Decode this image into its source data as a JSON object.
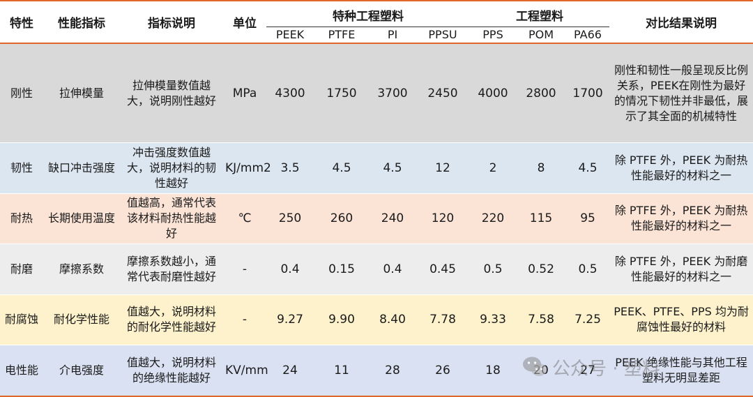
{
  "table": {
    "headers": {
      "feature": "特性",
      "indicator": "性能指标",
      "description": "指标说明",
      "unit": "单位",
      "special_group": "特种工程塑料",
      "engineering_group": "工程塑料",
      "result": "对比结果说明",
      "materials": [
        "PEEK",
        "PTFE",
        "PI",
        "PPSU",
        "PPS",
        "POM",
        "PA66"
      ]
    },
    "rows": [
      {
        "feature": "刚性",
        "indicator": "拉伸模量",
        "description": "拉伸模量数值越大，说明刚性越好",
        "unit": "MPa",
        "values": [
          "4300",
          "1750",
          "3700",
          "2450",
          "4000",
          "2800",
          "1700"
        ],
        "note": "刚性和韧性一般呈现反比例关系，PEEK在刚性为最好的情况下韧性并非最低，展示了其全面的机械特性"
      },
      {
        "feature": "韧性",
        "indicator": "缺口冲击强度",
        "description": "冲击强度数值越大，说明材料的韧性越好",
        "unit": "KJ/mm2",
        "values": [
          "3.5",
          "4.5",
          "4.5",
          "12",
          "2",
          "8",
          "4.5"
        ],
        "note": "除 PTFE 外，PEEK 为耐热性能最好的材料之一"
      },
      {
        "feature": "耐热",
        "indicator": "长期使用温度",
        "description": "值越高，通常代表该材料耐热性能越好",
        "unit": "℃",
        "values": [
          "250",
          "260",
          "240",
          "120",
          "220",
          "115",
          "95"
        ],
        "note": "除 PTFE 外，PEEK 为耐热性能最好的材料之一"
      },
      {
        "feature": "耐磨",
        "indicator": "摩擦系数",
        "description": "摩擦系数越小，通常代表耐磨性越好",
        "unit": "-",
        "values": [
          "0.4",
          "0.15",
          "0.4",
          "0.45",
          "0.5",
          "0.52",
          "0.5"
        ],
        "note": "除 PTFE 外，PEEK 为耐磨性能最好的材料之一"
      },
      {
        "feature": "耐腐蚀",
        "indicator": "耐化学性能",
        "description": "值越大，说明材料的耐化学性能越好",
        "unit": "-",
        "values": [
          "9.27",
          "9.90",
          "8.40",
          "7.78",
          "9.33",
          "7.58",
          "7.25"
        ],
        "note": "PEEK、PTFE、PPS 均为耐腐蚀性最好的材料"
      },
      {
        "feature": "电性能",
        "indicator": "介电强度",
        "description": "值越大，说明材料的绝缘性能越好",
        "unit": "KV/mm",
        "values": [
          "24",
          "11",
          "28",
          "26",
          "18",
          "20",
          "27"
        ],
        "note": "PEEK 绝缘性能与其他工程塑料无明显差距"
      }
    ],
    "row_colors": [
      "#d9d9d9",
      "#dce6f1",
      "#fbe3d6",
      "#ededed",
      "#fdf2cc",
      "#d9e1f2"
    ]
  },
  "watermark": {
    "icon": "wechat-icon",
    "text": "公众号 · 塑料"
  }
}
